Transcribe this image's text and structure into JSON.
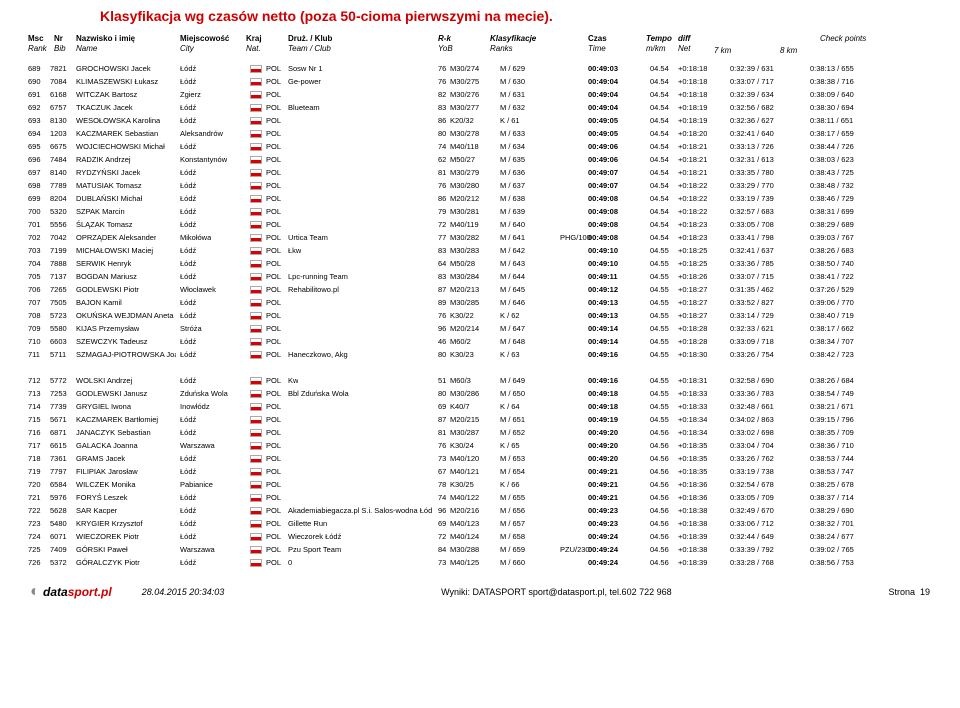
{
  "title": "Klasyfikacja wg czasów netto (poza 50-cioma pierwszymi na mecie).",
  "headers": {
    "rank": {
      "l1": "Msc",
      "l2": "Rank"
    },
    "bib": {
      "l1": "Nr",
      "l2": "Bib"
    },
    "name": {
      "l1": "Nazwisko i imię",
      "l2": "Name"
    },
    "city": {
      "l1": "Miejscowość",
      "l2": "City"
    },
    "nat": {
      "l1": "Kraj",
      "l2": "Nat."
    },
    "team": {
      "l1": "Druż. / Klub",
      "l2": "Team / Club"
    },
    "rk": {
      "l1": "R-k",
      "l2": "YoB"
    },
    "class": {
      "l1": "Klasyfikacje",
      "l2": "Ranks"
    },
    "time": {
      "l1": "Czas",
      "l2": "Time"
    },
    "tempo": {
      "l1": "Tempo",
      "l2": "m/km"
    },
    "diff": {
      "l1": "diff",
      "l2": "Net"
    },
    "cp": "Check points",
    "cp7": "7 km",
    "cp8": "8 km"
  },
  "rows": [
    {
      "rank": "689",
      "bib": "7821",
      "name": "GROCHOWSKI Jacek",
      "city": "Łódź",
      "nat": "POL",
      "team": "Sosw Nr 1",
      "rk": "76",
      "cat": "M30/274",
      "class": "M / 629",
      "time": "00:49:03",
      "tempo": "04.54",
      "diff": "+0:18:18",
      "c7": "0:32:39 / 631",
      "c8": "0:38:13 / 655"
    },
    {
      "rank": "690",
      "bib": "7084",
      "name": "KLIMASZEWSKI Łukasz",
      "city": "Łódź",
      "nat": "POL",
      "team": "Ge-power",
      "rk": "76",
      "cat": "M30/275",
      "class": "M / 630",
      "time": "00:49:04",
      "tempo": "04.54",
      "diff": "+0:18:18",
      "c7": "0:33:07 / 717",
      "c8": "0:38:38 / 716"
    },
    {
      "rank": "691",
      "bib": "6168",
      "name": "WITCZAK Bartosz",
      "city": "Zgierz",
      "nat": "POL",
      "team": "",
      "rk": "82",
      "cat": "M30/276",
      "class": "M / 631",
      "time": "00:49:04",
      "tempo": "04.54",
      "diff": "+0:18:18",
      "c7": "0:32:39 / 634",
      "c8": "0:38:09 / 640"
    },
    {
      "rank": "692",
      "bib": "6757",
      "name": "TKACZUK Jacek",
      "city": "Łódź",
      "nat": "POL",
      "team": "Blueteam",
      "rk": "83",
      "cat": "M30/277",
      "class": "M / 632",
      "time": "00:49:04",
      "tempo": "04.54",
      "diff": "+0:18:19",
      "c7": "0:32:56 / 682",
      "c8": "0:38:30 / 694"
    },
    {
      "rank": "693",
      "bib": "8130",
      "name": "WESOŁOWSKA Karolina",
      "city": "Łódź",
      "nat": "POL",
      "team": "",
      "rk": "86",
      "cat": "K20/32",
      "class": "K / 61",
      "time": "00:49:05",
      "tempo": "04.54",
      "diff": "+0:18:19",
      "c7": "0:32:36 / 627",
      "c8": "0:38:11 / 651"
    },
    {
      "rank": "694",
      "bib": "1203",
      "name": "KACZMAREK Sebastian",
      "city": "Aleksandrów",
      "nat": "POL",
      "team": "",
      "rk": "80",
      "cat": "M30/278",
      "class": "M / 633",
      "time": "00:49:05",
      "tempo": "04.54",
      "diff": "+0:18:20",
      "c7": "0:32:41 / 640",
      "c8": "0:38:17 / 659"
    },
    {
      "rank": "695",
      "bib": "6675",
      "name": "WOJCIECHOWSKI Michał",
      "city": "Łódź",
      "nat": "POL",
      "team": "",
      "rk": "74",
      "cat": "M40/118",
      "class": "M / 634",
      "time": "00:49:06",
      "tempo": "04.54",
      "diff": "+0:18:21",
      "c7": "0:33:13 / 726",
      "c8": "0:38:44 / 726"
    },
    {
      "rank": "696",
      "bib": "7484",
      "name": "RADZIK Andrzej",
      "city": "Konstantynów",
      "nat": "POL",
      "team": "",
      "rk": "62",
      "cat": "M50/27",
      "class": "M / 635",
      "time": "00:49:06",
      "tempo": "04.54",
      "diff": "+0:18:21",
      "c7": "0:32:31 / 613",
      "c8": "0:38:03 / 623"
    },
    {
      "rank": "697",
      "bib": "8140",
      "name": "RYDZYŃSKI Jacek",
      "city": "Łódź",
      "nat": "POL",
      "team": "",
      "rk": "81",
      "cat": "M30/279",
      "class": "M / 636",
      "time": "00:49:07",
      "tempo": "04.54",
      "diff": "+0:18:21",
      "c7": "0:33:35 / 780",
      "c8": "0:38:43 / 725"
    },
    {
      "rank": "698",
      "bib": "7789",
      "name": "MATUSIAK Tomasz",
      "city": "Łódź",
      "nat": "POL",
      "team": "",
      "rk": "76",
      "cat": "M30/280",
      "class": "M / 637",
      "time": "00:49:07",
      "tempo": "04.54",
      "diff": "+0:18:22",
      "c7": "0:33:29 / 770",
      "c8": "0:38:48 / 732"
    },
    {
      "rank": "699",
      "bib": "8204",
      "name": "DUBLAŃSKI Michał",
      "city": "Łódź",
      "nat": "POL",
      "team": "",
      "rk": "86",
      "cat": "M20/212",
      "class": "M / 638",
      "time": "00:49:08",
      "tempo": "04.54",
      "diff": "+0:18:22",
      "c7": "0:33:19 / 739",
      "c8": "0:38:46 / 729"
    },
    {
      "rank": "700",
      "bib": "5320",
      "name": "SZPAK Marcin",
      "city": "Łódź",
      "nat": "POL",
      "team": "",
      "rk": "79",
      "cat": "M30/281",
      "class": "M / 639",
      "time": "00:49:08",
      "tempo": "04.54",
      "diff": "+0:18:22",
      "c7": "0:32:57 / 683",
      "c8": "0:38:31 / 699"
    },
    {
      "rank": "701",
      "bib": "5556",
      "name": "ŚLĄZAK Tomasz",
      "city": "Łódź",
      "nat": "POL",
      "team": "",
      "rk": "72",
      "cat": "M40/119",
      "class": "M / 640",
      "time": "00:49:08",
      "tempo": "04.54",
      "diff": "+0:18:23",
      "c7": "0:33:05 / 708",
      "c8": "0:38:29 / 689"
    },
    {
      "rank": "702",
      "bib": "7042",
      "name": "OPRZĄDEK Aleksander",
      "city": "Mikołówa",
      "nat": "POL",
      "team": "Urtica Team",
      "rk": "77",
      "cat": "M30/282",
      "class": "M / 641",
      "time": "00:49:08",
      "tempo": "04.54",
      "diff": "+0:18:23",
      "c7": "0:33:41 / 798",
      "c8": "0:39:03 / 767",
      "pre": "PHG/100"
    },
    {
      "rank": "703",
      "bib": "7199",
      "name": "MICHAŁOWSKI Maciej",
      "city": "Łódź",
      "nat": "POL",
      "team": "Łkw",
      "rk": "83",
      "cat": "M30/283",
      "class": "M / 642",
      "time": "00:49:10",
      "tempo": "04.55",
      "diff": "+0:18:25",
      "c7": "0:32:41 / 637",
      "c8": "0:38:26 / 683"
    },
    {
      "rank": "704",
      "bib": "7888",
      "name": "SERWIK Henryk",
      "city": "Łódź",
      "nat": "POL",
      "team": "",
      "rk": "64",
      "cat": "M50/28",
      "class": "M / 643",
      "time": "00:49:10",
      "tempo": "04.55",
      "diff": "+0:18:25",
      "c7": "0:33:36 / 785",
      "c8": "0:38:50 / 740"
    },
    {
      "rank": "705",
      "bib": "7137",
      "name": "BOGDAN Mariusz",
      "city": "Łódź",
      "nat": "POL",
      "team": "Lpc-running Team",
      "rk": "83",
      "cat": "M30/284",
      "class": "M / 644",
      "time": "00:49:11",
      "tempo": "04.55",
      "diff": "+0:18:26",
      "c7": "0:33:07 / 715",
      "c8": "0:38:41 / 722"
    },
    {
      "rank": "706",
      "bib": "7265",
      "name": "GODLEWSKI Piotr",
      "city": "Włocławek",
      "nat": "POL",
      "team": "Rehabilitowo.pl",
      "rk": "87",
      "cat": "M20/213",
      "class": "M / 645",
      "time": "00:49:12",
      "tempo": "04.55",
      "diff": "+0:18:27",
      "c7": "0:31:35 / 462",
      "c8": "0:37:26 / 529"
    },
    {
      "rank": "707",
      "bib": "7505",
      "name": "BAJON Kamil",
      "city": "Łódź",
      "nat": "POL",
      "team": "",
      "rk": "89",
      "cat": "M30/285",
      "class": "M / 646",
      "time": "00:49:13",
      "tempo": "04.55",
      "diff": "+0:18:27",
      "c7": "0:33:52 / 827",
      "c8": "0:39:06 / 770"
    },
    {
      "rank": "708",
      "bib": "5723",
      "name": "OKUŃSKA WEJDMAN Aneta",
      "city": "Łódź",
      "nat": "POL",
      "team": "",
      "rk": "76",
      "cat": "K30/22",
      "class": "K / 62",
      "time": "00:49:13",
      "tempo": "04.55",
      "diff": "+0:18:27",
      "c7": "0:33:14 / 729",
      "c8": "0:38:40 / 719"
    },
    {
      "rank": "709",
      "bib": "5580",
      "name": "KIJAS Przemysław",
      "city": "Stróża",
      "nat": "POL",
      "team": "",
      "rk": "96",
      "cat": "M20/214",
      "class": "M / 647",
      "time": "00:49:14",
      "tempo": "04.55",
      "diff": "+0:18:28",
      "c7": "0:32:33 / 621",
      "c8": "0:38:17 / 662"
    },
    {
      "rank": "710",
      "bib": "6603",
      "name": "SZEWCZYK Tadeusz",
      "city": "Łódź",
      "nat": "POL",
      "team": "",
      "rk": "46",
      "cat": "M60/2",
      "class": "M / 648",
      "time": "00:49:14",
      "tempo": "04.55",
      "diff": "+0:18:28",
      "c7": "0:33:09 / 718",
      "c8": "0:38:34 / 707"
    },
    {
      "rank": "711",
      "bib": "5711",
      "name": "SZMAGAJ-PIOTROWSKA Joanna",
      "city": "Łódź",
      "nat": "POL",
      "team": "Haneczkowo, Akg",
      "rk": "80",
      "cat": "K30/23",
      "class": "K / 63",
      "time": "00:49:16",
      "tempo": "04.55",
      "diff": "+0:18:30",
      "c7": "0:33:26 / 754",
      "c8": "0:38:42 / 723",
      "extra": 1
    },
    {
      "rank": "712",
      "bib": "5772",
      "name": "WOLSKI Andrzej",
      "city": "Łódź",
      "nat": "POL",
      "team": "Kw",
      "rk": "51",
      "cat": "M60/3",
      "class": "M / 649",
      "time": "00:49:16",
      "tempo": "04.55",
      "diff": "+0:18:31",
      "c7": "0:32:58 / 690",
      "c8": "0:38:26 / 684"
    },
    {
      "rank": "713",
      "bib": "7253",
      "name": "GODLEWSKI Janusz",
      "city": "Zduńska Wola",
      "nat": "POL",
      "team": "Bbl Zduńska Wola",
      "rk": "80",
      "cat": "M30/286",
      "class": "M / 650",
      "time": "00:49:18",
      "tempo": "04.55",
      "diff": "+0:18:33",
      "c7": "0:33:36 / 783",
      "c8": "0:38:54 / 749"
    },
    {
      "rank": "714",
      "bib": "7739",
      "name": "GRYGIEL Iwona",
      "city": "Inowłódz",
      "nat": "POL",
      "team": "",
      "rk": "69",
      "cat": "K40/7",
      "class": "K / 64",
      "time": "00:49:18",
      "tempo": "04.55",
      "diff": "+0:18:33",
      "c7": "0:32:48 / 661",
      "c8": "0:38:21 / 671"
    },
    {
      "rank": "715",
      "bib": "5671",
      "name": "KACZMAREK Bartłomiej",
      "city": "Łódź",
      "nat": "POL",
      "team": "",
      "rk": "87",
      "cat": "M20/215",
      "class": "M / 651",
      "time": "00:49:19",
      "tempo": "04.55",
      "diff": "+0:18:34",
      "c7": "0:34:02 / 863",
      "c8": "0:39:15 / 796"
    },
    {
      "rank": "716",
      "bib": "6871",
      "name": "JANACZYK Sebastian",
      "city": "Łódź",
      "nat": "POL",
      "team": "",
      "rk": "81",
      "cat": "M30/287",
      "class": "M / 652",
      "time": "00:49:20",
      "tempo": "04.56",
      "diff": "+0:18:34",
      "c7": "0:33:02 / 698",
      "c8": "0:38:35 / 709"
    },
    {
      "rank": "717",
      "bib": "6615",
      "name": "GALACKA Joanna",
      "city": "Warszawa",
      "nat": "POL",
      "team": "",
      "rk": "76",
      "cat": "K30/24",
      "class": "K / 65",
      "time": "00:49:20",
      "tempo": "04.56",
      "diff": "+0:18:35",
      "c7": "0:33:04 / 704",
      "c8": "0:38:36 / 710"
    },
    {
      "rank": "718",
      "bib": "7361",
      "name": "GRAMS Jacek",
      "city": "Łódź",
      "nat": "POL",
      "team": "",
      "rk": "73",
      "cat": "M40/120",
      "class": "M / 653",
      "time": "00:49:20",
      "tempo": "04.56",
      "diff": "+0:18:35",
      "c7": "0:33:26 / 762",
      "c8": "0:38:53 / 744"
    },
    {
      "rank": "719",
      "bib": "7797",
      "name": "FILIPIAK Jarosław",
      "city": "Łódź",
      "nat": "POL",
      "team": "",
      "rk": "67",
      "cat": "M40/121",
      "class": "M / 654",
      "time": "00:49:21",
      "tempo": "04.56",
      "diff": "+0:18:35",
      "c7": "0:33:19 / 738",
      "c8": "0:38:53 / 747"
    },
    {
      "rank": "720",
      "bib": "6584",
      "name": "WILCZEK Monika",
      "city": "Pabianice",
      "nat": "POL",
      "team": "",
      "rk": "78",
      "cat": "K30/25",
      "class": "K / 66",
      "time": "00:49:21",
      "tempo": "04.56",
      "diff": "+0:18:36",
      "c7": "0:32:54 / 678",
      "c8": "0:38:25 / 678"
    },
    {
      "rank": "721",
      "bib": "5976",
      "name": "FORYŚ Leszek",
      "city": "Łódź",
      "nat": "POL",
      "team": "",
      "rk": "74",
      "cat": "M40/122",
      "class": "M / 655",
      "time": "00:49:21",
      "tempo": "04.56",
      "diff": "+0:18:36",
      "c7": "0:33:05 / 709",
      "c8": "0:38:37 / 714"
    },
    {
      "rank": "722",
      "bib": "5628",
      "name": "SAR Kacper",
      "city": "Łódź",
      "nat": "POL",
      "team": "Akademiabiegacza.pl S.i. Salos-wodna Łód",
      "rk": "96",
      "cat": "M20/216",
      "class": "M / 656",
      "time": "00:49:23",
      "tempo": "04.56",
      "diff": "+0:18:38",
      "c7": "0:32:49 / 670",
      "c8": "0:38:29 / 690"
    },
    {
      "rank": "723",
      "bib": "5480",
      "name": "KRYGIER Krzysztof",
      "city": "Łódź",
      "nat": "POL",
      "team": "Gillette Run",
      "rk": "69",
      "cat": "M40/123",
      "class": "M / 657",
      "time": "00:49:23",
      "tempo": "04.56",
      "diff": "+0:18:38",
      "c7": "0:33:06 / 712",
      "c8": "0:38:32 / 701"
    },
    {
      "rank": "724",
      "bib": "6071",
      "name": "WIECZOREK Piotr",
      "city": "Łódź",
      "nat": "POL",
      "team": "Wieczorek Łódź",
      "rk": "72",
      "cat": "M40/124",
      "class": "M / 658",
      "time": "00:49:24",
      "tempo": "04.56",
      "diff": "+0:18:39",
      "c7": "0:32:44 / 649",
      "c8": "0:38:24 / 677"
    },
    {
      "rank": "725",
      "bib": "7409",
      "name": "GÓRSKI Paweł",
      "city": "Warszawa",
      "nat": "POL",
      "team": "Pzu Sport Team",
      "rk": "84",
      "cat": "M30/288",
      "class": "M / 659",
      "time": "00:49:24",
      "tempo": "04.56",
      "diff": "+0:18:38",
      "c7": "0:33:39 / 792",
      "c8": "0:39:02 / 765",
      "pre": "PZU/230"
    },
    {
      "rank": "726",
      "bib": "5372",
      "name": "GÓRALCZYK Piotr",
      "city": "Łódź",
      "nat": "POL",
      "team": "0",
      "rk": "73",
      "cat": "M40/125",
      "class": "M / 660",
      "time": "00:49:24",
      "tempo": "04.56",
      "diff": "+0:18:39",
      "c7": "0:33:28 / 768",
      "c8": "0:38:56 / 753"
    }
  ],
  "footer": {
    "logo1": "data",
    "logo2": "sport",
    "logo3": ".pl",
    "ts": "28.04.2015 20:34:03",
    "mid": "Wyniki: DATASPORT sport@datasport.pl, tel.602 722 968",
    "pageLabel": "Strona",
    "pageNum": "19"
  },
  "col": {
    "rank": 8,
    "bib": 30,
    "name": 56,
    "city": 160,
    "flag": 230,
    "nat": 246,
    "team": 268,
    "rk": 418,
    "cat": 430,
    "class": 480,
    "pre": 540,
    "time": 568,
    "tempo": 630,
    "diff": 658,
    "c7": 710,
    "c8": 790
  }
}
